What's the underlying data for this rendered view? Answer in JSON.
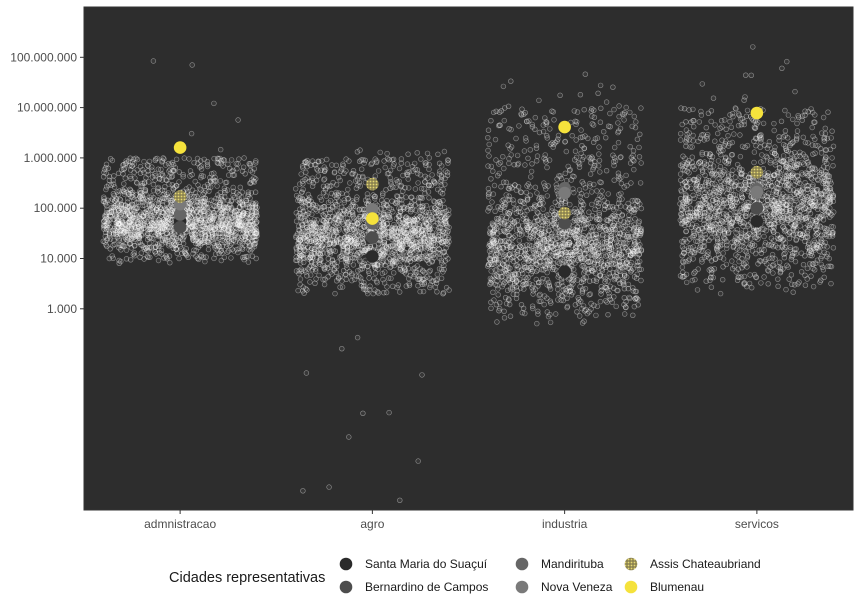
{
  "chart_data": {
    "type": "scatter",
    "subtype": "jittered-strip",
    "y_scale": "log10",
    "ylim": [
      0.1,
      1000000000
    ],
    "y_tick_values": [
      1000,
      10000,
      100000,
      1000000,
      10000000,
      100000000
    ],
    "y_tick_labels": [
      "1.000",
      "10.000",
      "100.000",
      "1.000.000",
      "10.000.000",
      "100.000.000"
    ],
    "categories": [
      "admnistracao",
      "agro",
      "industria",
      "servicos"
    ],
    "grid": false,
    "background": "#2d2d2d",
    "point_color": "#ffffff",
    "distributions": [
      {
        "category": "admnistracao",
        "core_min": 10000,
        "core_max": 1000000,
        "dense_min": 15000,
        "dense_max": 200000,
        "outlier_min": 8000,
        "outlier_max": 100000000
      },
      {
        "category": "agro",
        "core_min": 2000,
        "core_max": 1000000,
        "dense_min": 5000,
        "dense_max": 150000,
        "outlier_min": 0.1,
        "outlier_max": 1500000
      },
      {
        "category": "industria",
        "core_min": 700,
        "core_max": 10000000,
        "dense_min": 2000,
        "dense_max": 200000,
        "outlier_min": 500,
        "outlier_max": 60000000
      },
      {
        "category": "servicos",
        "core_min": 3000,
        "core_max": 10000000,
        "dense_min": 8000,
        "dense_max": 1500000,
        "outlier_min": 2000,
        "outlier_max": 200000000
      }
    ],
    "series": [
      {
        "name": "Santa Maria do Suaçuí",
        "color": "#2a2a2a",
        "pattern": "solid",
        "points": [
          {
            "x": "admnistracao",
            "y": 55000
          },
          {
            "x": "agro",
            "y": 11000
          },
          {
            "x": "industria",
            "y": 5500
          },
          {
            "x": "servicos",
            "y": 55000
          }
        ]
      },
      {
        "name": "Bernardino de Campos",
        "color": "#4d4d4d",
        "pattern": "solid",
        "points": [
          {
            "x": "admnistracao",
            "y": 42000
          },
          {
            "x": "agro",
            "y": 26000
          },
          {
            "x": "industria",
            "y": 50000
          },
          {
            "x": "servicos",
            "y": 100000
          }
        ]
      },
      {
        "name": "Mandirituba",
        "color": "#666666",
        "pattern": "solid",
        "points": [
          {
            "x": "admnistracao",
            "y": 75000
          },
          {
            "x": "agro",
            "y": 50000
          },
          {
            "x": "industria",
            "y": 250000
          },
          {
            "x": "servicos",
            "y": 240000
          }
        ]
      },
      {
        "name": "Nova Veneza",
        "color": "#7a7a7a",
        "pattern": "solid",
        "points": [
          {
            "x": "admnistracao",
            "y": 120000
          },
          {
            "x": "agro",
            "y": 95000
          },
          {
            "x": "industria",
            "y": 200000
          },
          {
            "x": "servicos",
            "y": 210000
          }
        ]
      },
      {
        "name": "Assis Chateaubriand",
        "color": "#b8ab60",
        "pattern": "dotted",
        "points": [
          {
            "x": "admnistracao",
            "y": 170000
          },
          {
            "x": "agro",
            "y": 300000
          },
          {
            "x": "industria",
            "y": 80000
          },
          {
            "x": "servicos",
            "y": 520000
          }
        ]
      },
      {
        "name": "Blumenau",
        "color": "#f5e23c",
        "pattern": "solid",
        "points": [
          {
            "x": "admnistracao",
            "y": 1600000
          },
          {
            "x": "agro",
            "y": 62000
          },
          {
            "x": "industria",
            "y": 4100000
          },
          {
            "x": "servicos",
            "y": 7800000
          }
        ]
      }
    ],
    "legend": {
      "title": "Cidades representativas",
      "placement": "bottom",
      "items": [
        "Santa Maria do Suaçuí",
        "Bernardino de Campos",
        "Mandirituba",
        "Nova Veneza",
        "Assis Chateaubriand",
        "Blumenau"
      ]
    },
    "xlabel": "",
    "ylabel": "",
    "title": ""
  }
}
